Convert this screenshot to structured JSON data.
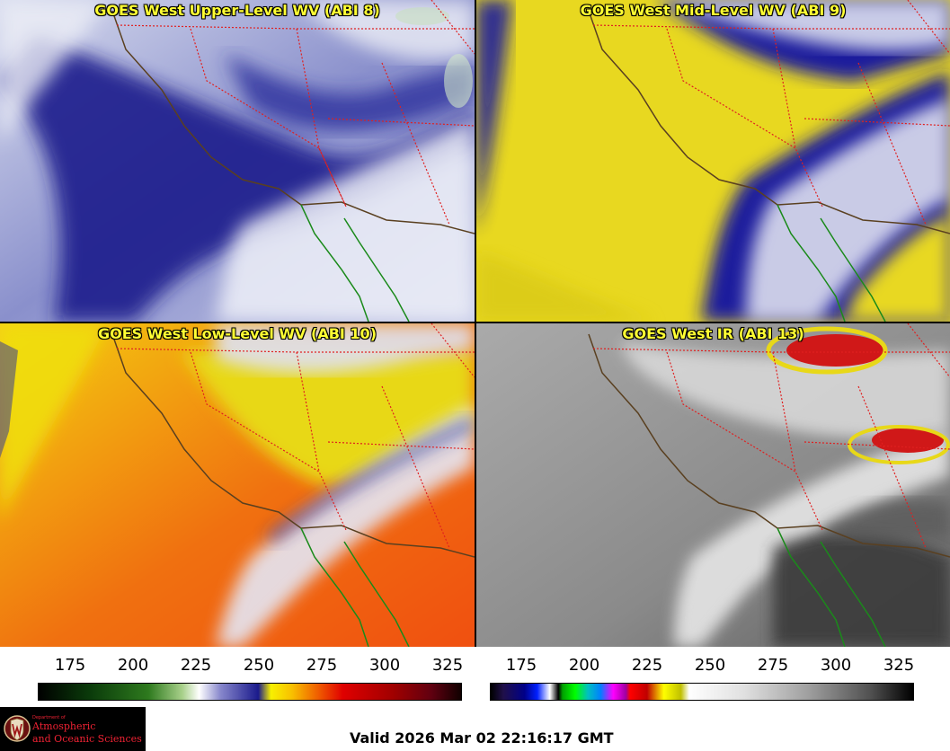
{
  "panels": {
    "upper": {
      "title": "GOES West Upper-Level WV (ABI 8)"
    },
    "mid": {
      "title": "GOES West Mid-Level WV (ABI 9)"
    },
    "low": {
      "title": "GOES West Low-Level WV (ABI 10)"
    },
    "ir": {
      "title": "GOES West IR (ABI 13)"
    }
  },
  "colorbar_wv": {
    "ticks": [
      "175",
      "200",
      "225",
      "250",
      "275",
      "300",
      "325"
    ]
  },
  "colorbar_ir": {
    "ticks": [
      "175",
      "200",
      "225",
      "250",
      "275",
      "300",
      "325"
    ]
  },
  "logo": {
    "line1": "Department of",
    "line2": "Atmospheric",
    "line3": "and Oceanic Sciences"
  },
  "valid_time": "Valid 2026 Mar 02 22:16:17 GMT"
}
